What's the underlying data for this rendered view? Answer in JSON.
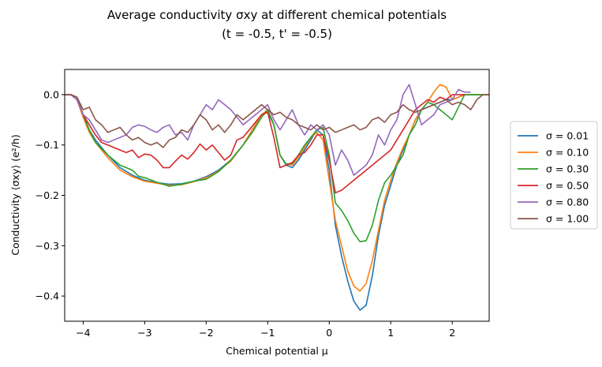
{
  "chart_data": {
    "type": "line",
    "title": "Average conductivity σxy at different chemical potentials",
    "subtitle": "(t = -0.5, t' = -0.5)",
    "xlabel": "Chemical potential μ",
    "ylabel": "Conductivity ⟨σxy⟩ (e²/h)",
    "xlim": [
      -4.3,
      2.6
    ],
    "ylim": [
      -0.45,
      0.05
    ],
    "xticks": [
      -4,
      -3,
      -2,
      -1,
      0,
      1,
      2
    ],
    "yticks": [
      0.0,
      -0.1,
      -0.2,
      -0.3,
      -0.4
    ],
    "xtick_labels": [
      "−4",
      "−3",
      "−2",
      "−1",
      "0",
      "1",
      "2"
    ],
    "ytick_labels": [
      "0.0",
      "−0.1",
      "−0.2",
      "−0.3",
      "−0.4"
    ],
    "grid": false,
    "legend_position": "right-outside",
    "series": [
      {
        "name": "σ = 0.01",
        "color": "#1f77b4",
        "x": [
          -4.3,
          -4.2,
          -4.1,
          -4.0,
          -3.9,
          -3.8,
          -3.6,
          -3.4,
          -3.2,
          -3.0,
          -2.8,
          -2.6,
          -2.4,
          -2.2,
          -2.0,
          -1.8,
          -1.6,
          -1.4,
          -1.25,
          -1.1,
          -1.0,
          -0.9,
          -0.8,
          -0.7,
          -0.6,
          -0.5,
          -0.4,
          -0.3,
          -0.2,
          -0.1,
          0.0,
          0.1,
          0.2,
          0.3,
          0.4,
          0.5,
          0.6,
          0.7,
          0.8,
          0.9,
          1.0,
          1.1,
          1.2,
          1.3,
          1.4,
          1.5,
          1.6,
          1.7,
          1.8,
          1.9,
          2.0,
          2.2,
          2.4,
          2.6
        ],
        "y": [
          0.0,
          0.0,
          -0.01,
          -0.04,
          -0.07,
          -0.09,
          -0.12,
          -0.145,
          -0.16,
          -0.17,
          -0.175,
          -0.178,
          -0.177,
          -0.172,
          -0.163,
          -0.15,
          -0.13,
          -0.1,
          -0.07,
          -0.04,
          -0.035,
          -0.06,
          -0.12,
          -0.14,
          -0.145,
          -0.13,
          -0.11,
          -0.09,
          -0.07,
          -0.08,
          -0.15,
          -0.26,
          -0.32,
          -0.37,
          -0.41,
          -0.428,
          -0.418,
          -0.36,
          -0.28,
          -0.22,
          -0.18,
          -0.14,
          -0.11,
          -0.08,
          -0.05,
          -0.03,
          -0.025,
          -0.02,
          -0.015,
          -0.01,
          -0.01,
          0.0,
          0.0,
          0.0
        ]
      },
      {
        "name": "σ = 0.10",
        "color": "#ff7f0e",
        "x": [
          -4.3,
          -4.2,
          -4.1,
          -4.0,
          -3.9,
          -3.8,
          -3.6,
          -3.4,
          -3.2,
          -3.0,
          -2.8,
          -2.6,
          -2.4,
          -2.2,
          -2.0,
          -1.8,
          -1.6,
          -1.4,
          -1.25,
          -1.1,
          -1.0,
          -0.9,
          -0.8,
          -0.7,
          -0.6,
          -0.5,
          -0.4,
          -0.3,
          -0.2,
          -0.1,
          0.0,
          0.1,
          0.2,
          0.3,
          0.4,
          0.5,
          0.6,
          0.7,
          0.8,
          0.9,
          1.0,
          1.1,
          1.2,
          1.3,
          1.4,
          1.5,
          1.6,
          1.7,
          1.8,
          1.9,
          2.0,
          2.2,
          2.4,
          2.6
        ],
        "y": [
          0.0,
          0.0,
          -0.01,
          -0.045,
          -0.075,
          -0.095,
          -0.125,
          -0.15,
          -0.163,
          -0.172,
          -0.176,
          -0.18,
          -0.179,
          -0.173,
          -0.165,
          -0.152,
          -0.132,
          -0.1,
          -0.07,
          -0.04,
          -0.03,
          -0.06,
          -0.12,
          -0.138,
          -0.14,
          -0.125,
          -0.105,
          -0.085,
          -0.075,
          -0.09,
          -0.17,
          -0.25,
          -0.3,
          -0.35,
          -0.38,
          -0.39,
          -0.375,
          -0.33,
          -0.27,
          -0.21,
          -0.17,
          -0.135,
          -0.105,
          -0.08,
          -0.05,
          -0.03,
          -0.015,
          0.005,
          0.02,
          0.015,
          -0.01,
          0.0,
          0.0,
          0.0
        ]
      },
      {
        "name": "σ = 0.30",
        "color": "#2ca02c",
        "x": [
          -4.3,
          -4.2,
          -4.1,
          -4.0,
          -3.9,
          -3.8,
          -3.6,
          -3.4,
          -3.2,
          -3.1,
          -3.0,
          -2.8,
          -2.6,
          -2.4,
          -2.2,
          -2.0,
          -1.8,
          -1.6,
          -1.4,
          -1.25,
          -1.1,
          -1.0,
          -0.9,
          -0.8,
          -0.7,
          -0.6,
          -0.5,
          -0.4,
          -0.3,
          -0.2,
          -0.1,
          0.0,
          0.1,
          0.2,
          0.3,
          0.4,
          0.5,
          0.6,
          0.7,
          0.8,
          0.9,
          1.0,
          1.1,
          1.2,
          1.3,
          1.4,
          1.5,
          1.6,
          1.7,
          1.8,
          1.9,
          2.0,
          2.2,
          2.4,
          2.6
        ],
        "y": [
          0.0,
          0.0,
          -0.005,
          -0.04,
          -0.07,
          -0.095,
          -0.12,
          -0.14,
          -0.15,
          -0.162,
          -0.165,
          -0.174,
          -0.182,
          -0.178,
          -0.172,
          -0.168,
          -0.153,
          -0.13,
          -0.1,
          -0.075,
          -0.045,
          -0.03,
          -0.06,
          -0.12,
          -0.138,
          -0.137,
          -0.12,
          -0.1,
          -0.085,
          -0.07,
          -0.065,
          -0.12,
          -0.215,
          -0.23,
          -0.25,
          -0.275,
          -0.292,
          -0.29,
          -0.26,
          -0.21,
          -0.175,
          -0.16,
          -0.14,
          -0.12,
          -0.08,
          -0.06,
          -0.03,
          -0.015,
          -0.02,
          -0.03,
          -0.04,
          -0.05,
          0.0,
          0.0,
          0.0
        ]
      },
      {
        "name": "σ = 0.50",
        "color": "#d62728",
        "x": [
          -4.3,
          -4.2,
          -4.1,
          -4.0,
          -3.9,
          -3.8,
          -3.7,
          -3.6,
          -3.5,
          -3.4,
          -3.3,
          -3.2,
          -3.1,
          -3.0,
          -2.9,
          -2.8,
          -2.7,
          -2.6,
          -2.5,
          -2.4,
          -2.3,
          -2.2,
          -2.1,
          -2.0,
          -1.9,
          -1.8,
          -1.7,
          -1.6,
          -1.5,
          -1.4,
          -1.3,
          -1.2,
          -1.1,
          -1.0,
          -0.9,
          -0.8,
          -0.7,
          -0.6,
          -0.5,
          -0.4,
          -0.3,
          -0.2,
          -0.1,
          0.0,
          0.1,
          0.2,
          0.3,
          0.4,
          0.5,
          0.6,
          0.7,
          0.8,
          0.9,
          1.0,
          1.1,
          1.2,
          1.3,
          1.4,
          1.5,
          1.6,
          1.7,
          1.8,
          1.9,
          2.0,
          2.1,
          2.2
        ],
        "y": [
          0.0,
          0.0,
          -0.01,
          -0.04,
          -0.06,
          -0.08,
          -0.095,
          -0.1,
          -0.105,
          -0.11,
          -0.115,
          -0.11,
          -0.125,
          -0.118,
          -0.12,
          -0.13,
          -0.145,
          -0.145,
          -0.132,
          -0.12,
          -0.128,
          -0.115,
          -0.098,
          -0.11,
          -0.1,
          -0.115,
          -0.13,
          -0.12,
          -0.09,
          -0.085,
          -0.07,
          -0.055,
          -0.04,
          -0.035,
          -0.085,
          -0.145,
          -0.14,
          -0.135,
          -0.12,
          -0.115,
          -0.1,
          -0.08,
          -0.08,
          -0.13,
          -0.195,
          -0.19,
          -0.18,
          -0.17,
          -0.16,
          -0.15,
          -0.14,
          -0.13,
          -0.12,
          -0.11,
          -0.09,
          -0.07,
          -0.05,
          -0.03,
          -0.02,
          -0.01,
          -0.015,
          -0.005,
          -0.01,
          0.0,
          0.0,
          0.0
        ]
      },
      {
        "name": "σ = 0.80",
        "color": "#9467bd",
        "x": [
          -4.3,
          -4.2,
          -4.1,
          -4.0,
          -3.9,
          -3.8,
          -3.7,
          -3.6,
          -3.5,
          -3.4,
          -3.3,
          -3.2,
          -3.1,
          -3.0,
          -2.9,
          -2.8,
          -2.7,
          -2.6,
          -2.5,
          -2.4,
          -2.3,
          -2.2,
          -2.1,
          -2.0,
          -1.9,
          -1.8,
          -1.7,
          -1.6,
          -1.5,
          -1.4,
          -1.3,
          -1.2,
          -1.1,
          -1.0,
          -0.9,
          -0.8,
          -0.7,
          -0.6,
          -0.5,
          -0.4,
          -0.3,
          -0.2,
          -0.1,
          0.0,
          0.1,
          0.2,
          0.3,
          0.4,
          0.5,
          0.6,
          0.7,
          0.8,
          0.9,
          1.0,
          1.1,
          1.2,
          1.3,
          1.4,
          1.5,
          1.6,
          1.7,
          1.8,
          1.9,
          2.0,
          2.1,
          2.2,
          2.3
        ],
        "y": [
          0.0,
          0.0,
          -0.01,
          -0.04,
          -0.05,
          -0.07,
          -0.09,
          -0.095,
          -0.09,
          -0.085,
          -0.08,
          -0.065,
          -0.06,
          -0.063,
          -0.07,
          -0.075,
          -0.065,
          -0.06,
          -0.08,
          -0.075,
          -0.09,
          -0.06,
          -0.04,
          -0.02,
          -0.03,
          -0.01,
          -0.02,
          -0.03,
          -0.045,
          -0.06,
          -0.05,
          -0.04,
          -0.03,
          -0.02,
          -0.05,
          -0.07,
          -0.05,
          -0.03,
          -0.06,
          -0.08,
          -0.06,
          -0.07,
          -0.06,
          -0.08,
          -0.14,
          -0.11,
          -0.13,
          -0.16,
          -0.15,
          -0.14,
          -0.12,
          -0.08,
          -0.1,
          -0.07,
          -0.05,
          0.0,
          0.02,
          -0.02,
          -0.06,
          -0.05,
          -0.04,
          -0.02,
          -0.015,
          -0.01,
          0.01,
          0.005,
          0.005
        ]
      },
      {
        "name": "σ = 1.00",
        "color": "#8c564b",
        "x": [
          -4.3,
          -4.2,
          -4.1,
          -4.0,
          -3.9,
          -3.8,
          -3.7,
          -3.6,
          -3.5,
          -3.4,
          -3.3,
          -3.2,
          -3.1,
          -3.0,
          -2.9,
          -2.8,
          -2.7,
          -2.6,
          -2.5,
          -2.4,
          -2.3,
          -2.2,
          -2.1,
          -2.0,
          -1.9,
          -1.8,
          -1.7,
          -1.6,
          -1.5,
          -1.4,
          -1.3,
          -1.2,
          -1.1,
          -1.0,
          -0.9,
          -0.8,
          -0.7,
          -0.6,
          -0.5,
          -0.4,
          -0.3,
          -0.2,
          -0.1,
          0.0,
          0.1,
          0.2,
          0.3,
          0.4,
          0.5,
          0.6,
          0.7,
          0.8,
          0.9,
          1.0,
          1.1,
          1.2,
          1.3,
          1.4,
          1.5,
          1.6,
          1.7,
          1.8,
          1.9,
          2.0,
          2.1,
          2.2,
          2.3,
          2.4,
          2.5,
          2.6
        ],
        "y": [
          0.0,
          0.0,
          -0.005,
          -0.03,
          -0.025,
          -0.05,
          -0.06,
          -0.075,
          -0.07,
          -0.065,
          -0.08,
          -0.09,
          -0.085,
          -0.095,
          -0.1,
          -0.095,
          -0.105,
          -0.09,
          -0.085,
          -0.07,
          -0.075,
          -0.06,
          -0.04,
          -0.05,
          -0.07,
          -0.06,
          -0.075,
          -0.06,
          -0.04,
          -0.05,
          -0.04,
          -0.03,
          -0.02,
          -0.03,
          -0.04,
          -0.035,
          -0.045,
          -0.05,
          -0.06,
          -0.065,
          -0.07,
          -0.06,
          -0.07,
          -0.065,
          -0.075,
          -0.07,
          -0.065,
          -0.06,
          -0.07,
          -0.065,
          -0.05,
          -0.045,
          -0.055,
          -0.04,
          -0.035,
          -0.02,
          -0.03,
          -0.035,
          -0.03,
          -0.025,
          -0.02,
          -0.015,
          -0.01,
          -0.02,
          -0.015,
          -0.02,
          -0.03,
          -0.01,
          0.0,
          0.0
        ]
      }
    ]
  }
}
